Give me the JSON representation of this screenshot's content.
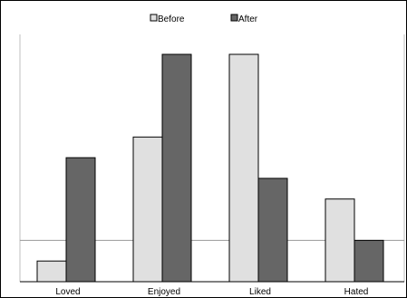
{
  "chart_data": {
    "type": "bar",
    "title": "",
    "xlabel": "",
    "ylabel": "",
    "categories": [
      "Loved",
      "Enjoyed",
      "Liked",
      "Hated"
    ],
    "series": [
      {
        "name": "Before",
        "values": [
          1,
          7,
          11,
          4
        ],
        "color": "#e0e0e0"
      },
      {
        "name": "After",
        "values": [
          6,
          11,
          5,
          2
        ],
        "color": "#666666"
      }
    ],
    "ylim": [
      0,
      11
    ],
    "reference_line": 2,
    "legend_position": "top-center",
    "grid": false
  }
}
